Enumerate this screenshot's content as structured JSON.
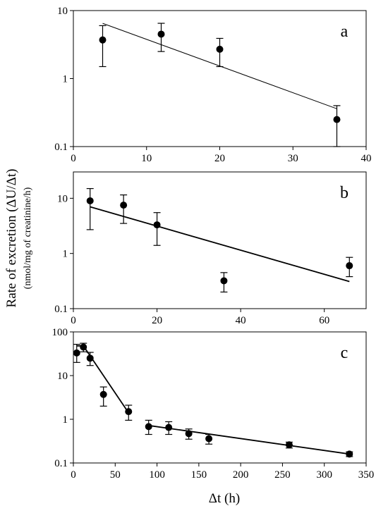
{
  "figure": {
    "ylabel_main": "Rate of excretion (ΔU/Δt)",
    "ylabel_sub": "(nmol/mg of creatinine/h)",
    "xlabel": "Δt (h)"
  },
  "chart_data": [
    {
      "type": "scatter",
      "panel_label": "a",
      "yscale": "log",
      "xlim": [
        0,
        40
      ],
      "ylim": [
        0.1,
        10
      ],
      "xticks": [
        "0",
        "10",
        "20",
        "30",
        "40"
      ],
      "yticks": [
        "0.1",
        "1",
        "10"
      ],
      "x": [
        4,
        12,
        20,
        36
      ],
      "y": [
        3.7,
        4.5,
        2.7,
        0.25
      ],
      "err_low": [
        1.5,
        2.5,
        1.5,
        0.1
      ],
      "err_high": [
        6.0,
        6.5,
        3.9,
        0.4
      ],
      "fit_lines": [
        [
          [
            4,
            6.5
          ],
          [
            36,
            0.36
          ]
        ]
      ]
    },
    {
      "type": "scatter",
      "panel_label": "b",
      "yscale": "log",
      "xlim": [
        0,
        70
      ],
      "ylim": [
        0.1,
        30
      ],
      "xticks": [
        "0",
        "20",
        "40",
        "60"
      ],
      "yticks": [
        "0.1",
        "1",
        "10"
      ],
      "x": [
        4,
        12,
        20,
        36,
        66
      ],
      "y": [
        9.0,
        7.5,
        3.3,
        0.32,
        0.6
      ],
      "err_low": [
        2.7,
        3.5,
        1.4,
        0.2,
        0.38
      ],
      "err_high": [
        15.0,
        11.5,
        5.5,
        0.45,
        0.85
      ],
      "fit_lines": [
        [
          [
            4,
            7.0
          ],
          [
            66,
            0.31
          ]
        ]
      ]
    },
    {
      "type": "scatter",
      "panel_label": "c",
      "yscale": "log",
      "xlim": [
        0,
        350
      ],
      "ylim": [
        0.1,
        100
      ],
      "xticks": [
        "0",
        "50",
        "100",
        "150",
        "200",
        "250",
        "300",
        "350"
      ],
      "yticks": [
        "0.1",
        "1",
        "10",
        "100"
      ],
      "x": [
        4,
        12,
        20,
        36,
        66,
        90,
        114,
        138,
        162,
        258,
        330
      ],
      "y": [
        33,
        45,
        25,
        3.7,
        1.5,
        0.68,
        0.65,
        0.47,
        0.36,
        0.26,
        0.16
      ],
      "err_low": [
        20,
        35,
        17,
        2.0,
        0.95,
        0.45,
        0.45,
        0.35,
        0.27,
        0.22,
        0.14
      ],
      "err_high": [
        52,
        55,
        34,
        5.5,
        2.1,
        0.95,
        0.88,
        0.6,
        0.45,
        0.3,
        0.18
      ],
      "fit_lines": [
        [
          [
            4,
            48
          ],
          [
            12,
            48
          ],
          [
            66,
            1.4
          ]
        ],
        [
          [
            90,
            0.72
          ],
          [
            330,
            0.16
          ]
        ]
      ]
    }
  ]
}
